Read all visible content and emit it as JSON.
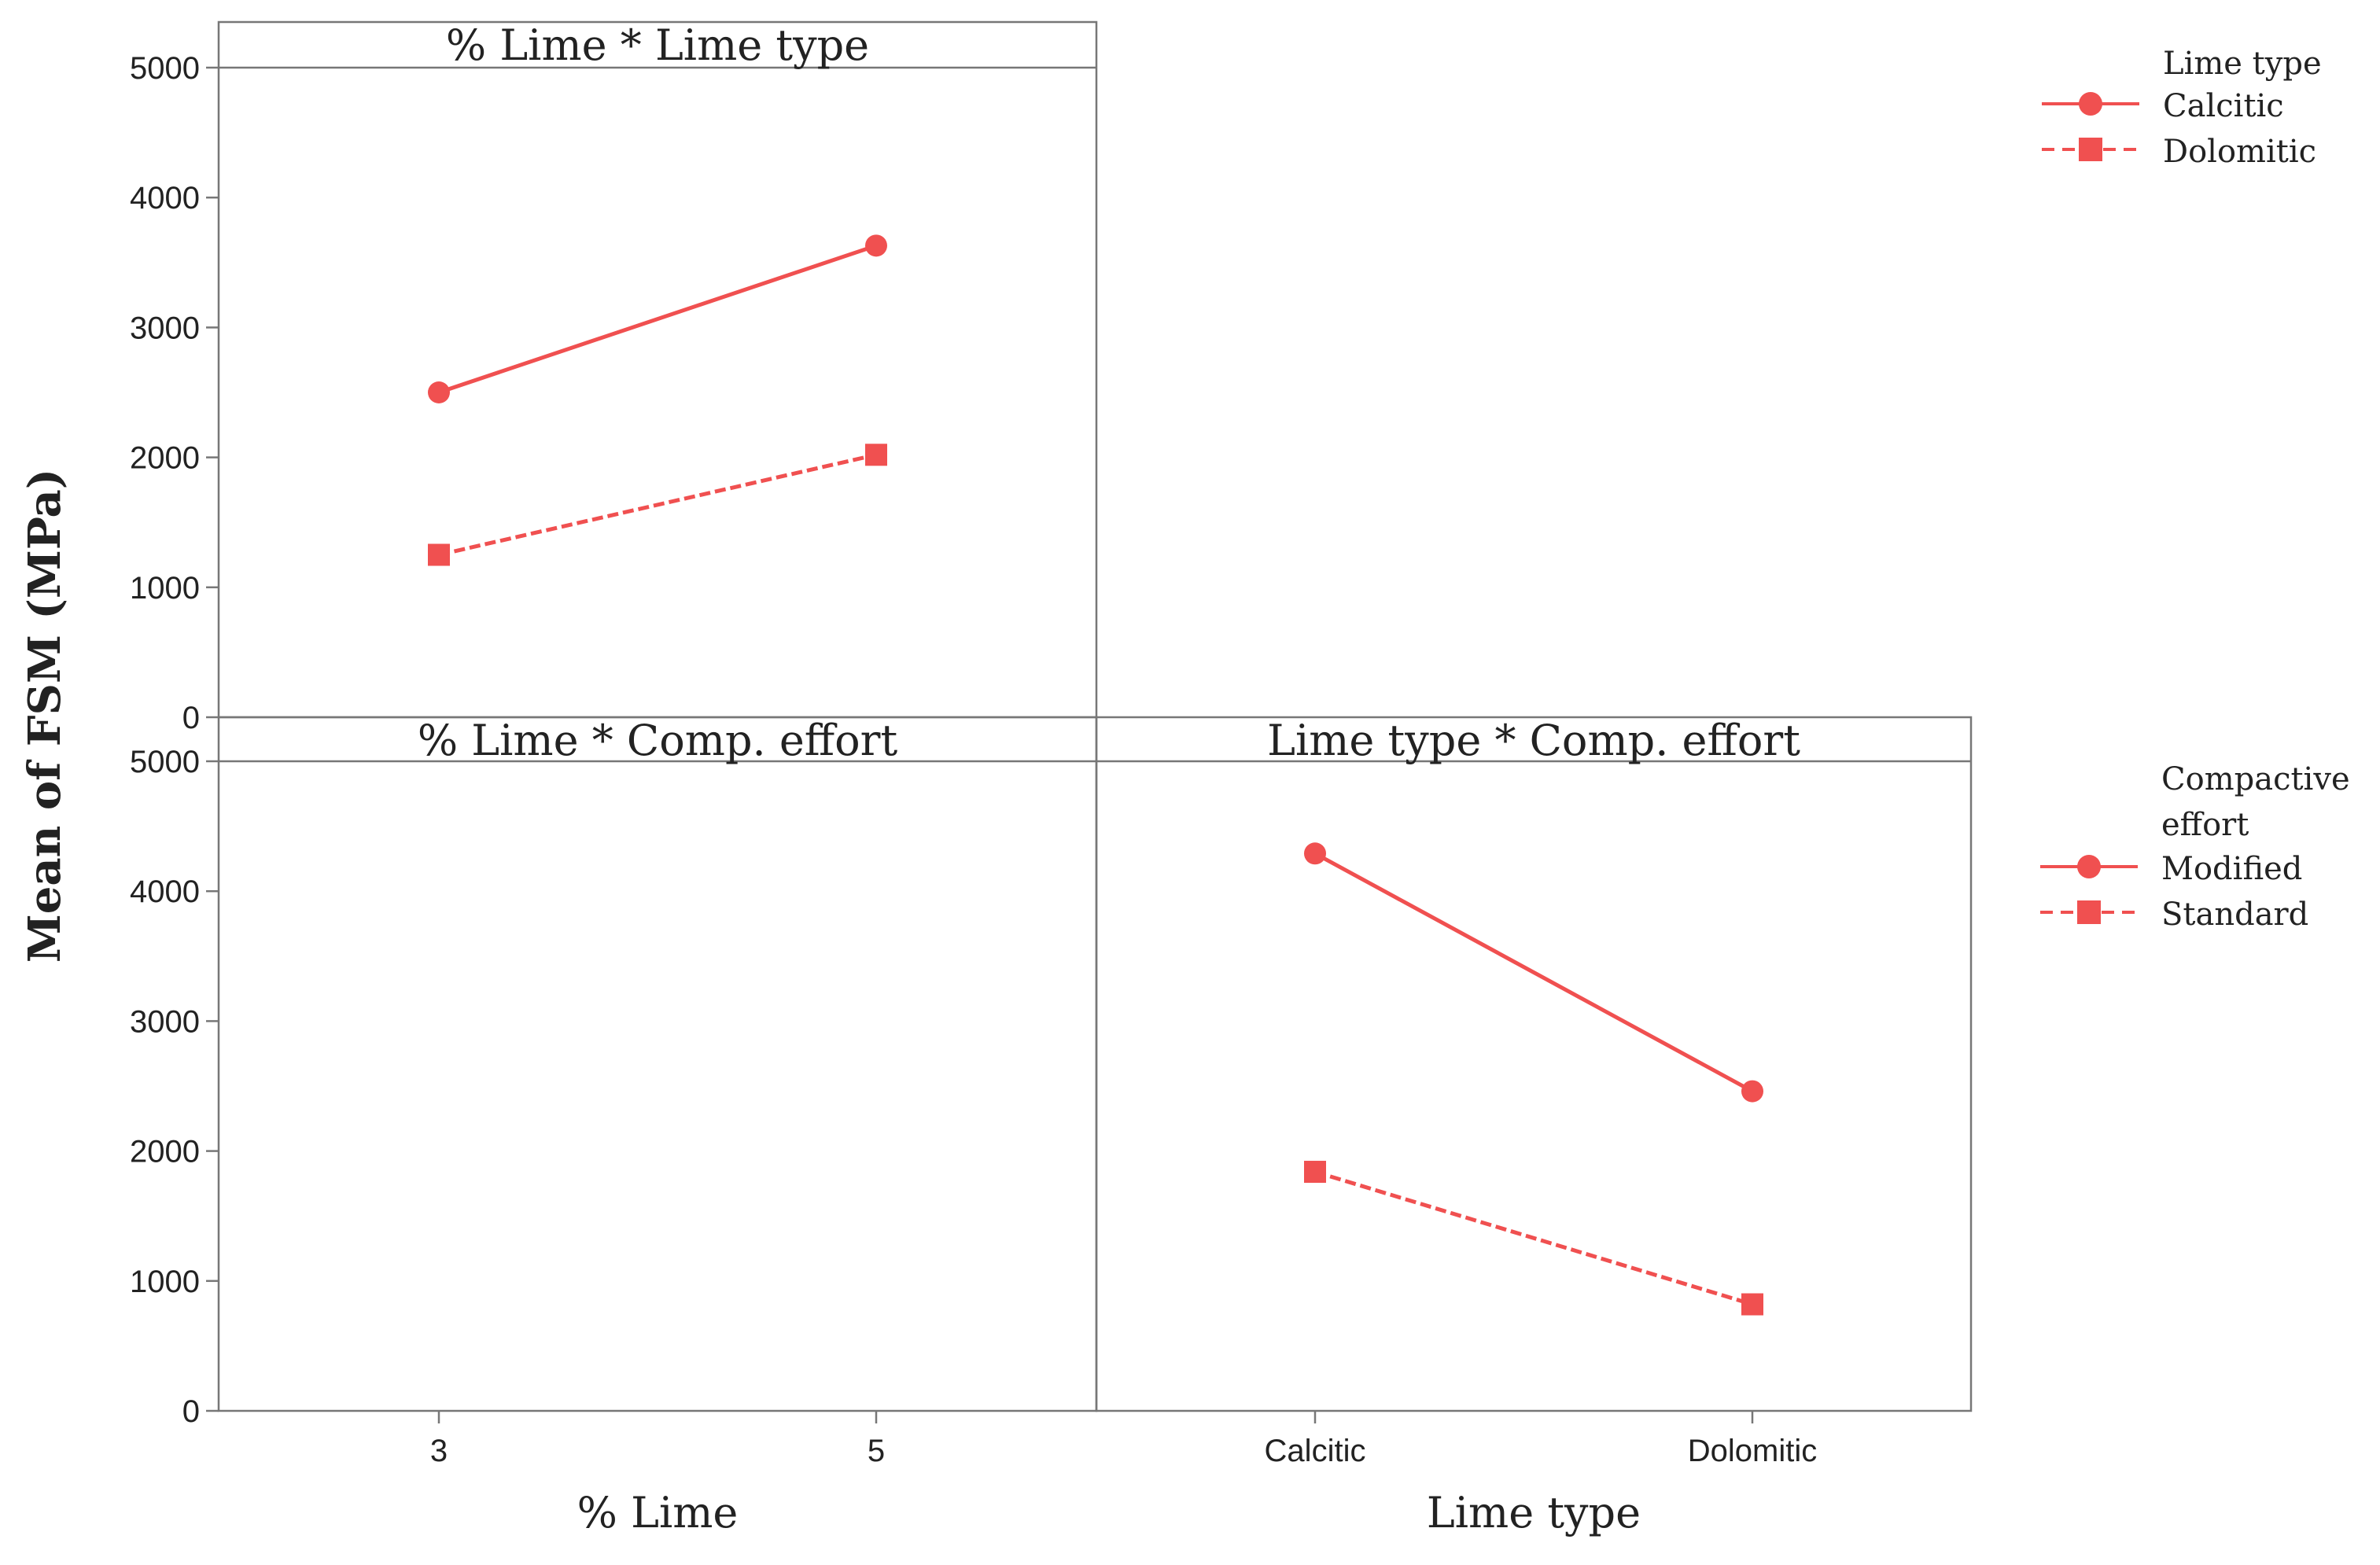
{
  "y_axis": {
    "label": "Mean of FSM (MPa)",
    "ylim": [
      0,
      5000
    ],
    "ticks": [
      "0",
      "1000",
      "2000",
      "3000",
      "4000",
      "5000"
    ]
  },
  "x_axes": {
    "left": {
      "label": "% Lime",
      "ticks": [
        "3",
        "5"
      ]
    },
    "right": {
      "label": "Lime type",
      "ticks": [
        "Calcitic",
        "Dolomitic"
      ]
    }
  },
  "legends": [
    {
      "title": "Lime type",
      "entries": [
        "Calcitic",
        "Dolomitic"
      ]
    },
    {
      "title_line1": "Compactive",
      "title_line2": "effort",
      "entries": [
        "Modified",
        "Standard"
      ]
    }
  ],
  "colors": {
    "series": "#f05050",
    "frame": "#777777",
    "text": "#222222"
  },
  "chart_data": [
    {
      "type": "line",
      "title": "% Lime * Lime type",
      "xlabel": "",
      "ylabel": "Mean of FSM (MPa)",
      "categories": [
        "3",
        "5"
      ],
      "ylim": [
        0,
        5000
      ],
      "series": [
        {
          "name": "Calcitic",
          "values": [
            2500,
            3630
          ],
          "marker": "circle",
          "dash": "solid"
        },
        {
          "name": "Dolomitic",
          "values": [
            1250,
            2020
          ],
          "marker": "square",
          "dash": "dashed"
        }
      ]
    },
    {
      "type": "line",
      "title": "% Lime * Comp. effort",
      "xlabel": "% Lime",
      "ylabel": "Mean of FSM (MPa)",
      "categories": [
        "3",
        "5"
      ],
      "ylim": [
        0,
        5000
      ],
      "series": []
    },
    {
      "type": "line",
      "title": "Lime type * Comp. effort",
      "xlabel": "Lime type",
      "ylabel": "",
      "categories": [
        "Calcitic",
        "Dolomitic"
      ],
      "ylim": [
        0,
        5000
      ],
      "series": [
        {
          "name": "Modified",
          "values": [
            4290,
            2460
          ],
          "marker": "circle",
          "dash": "solid"
        },
        {
          "name": "Standard",
          "values": [
            1840,
            820
          ],
          "marker": "square",
          "dash": "dashed"
        }
      ]
    }
  ]
}
